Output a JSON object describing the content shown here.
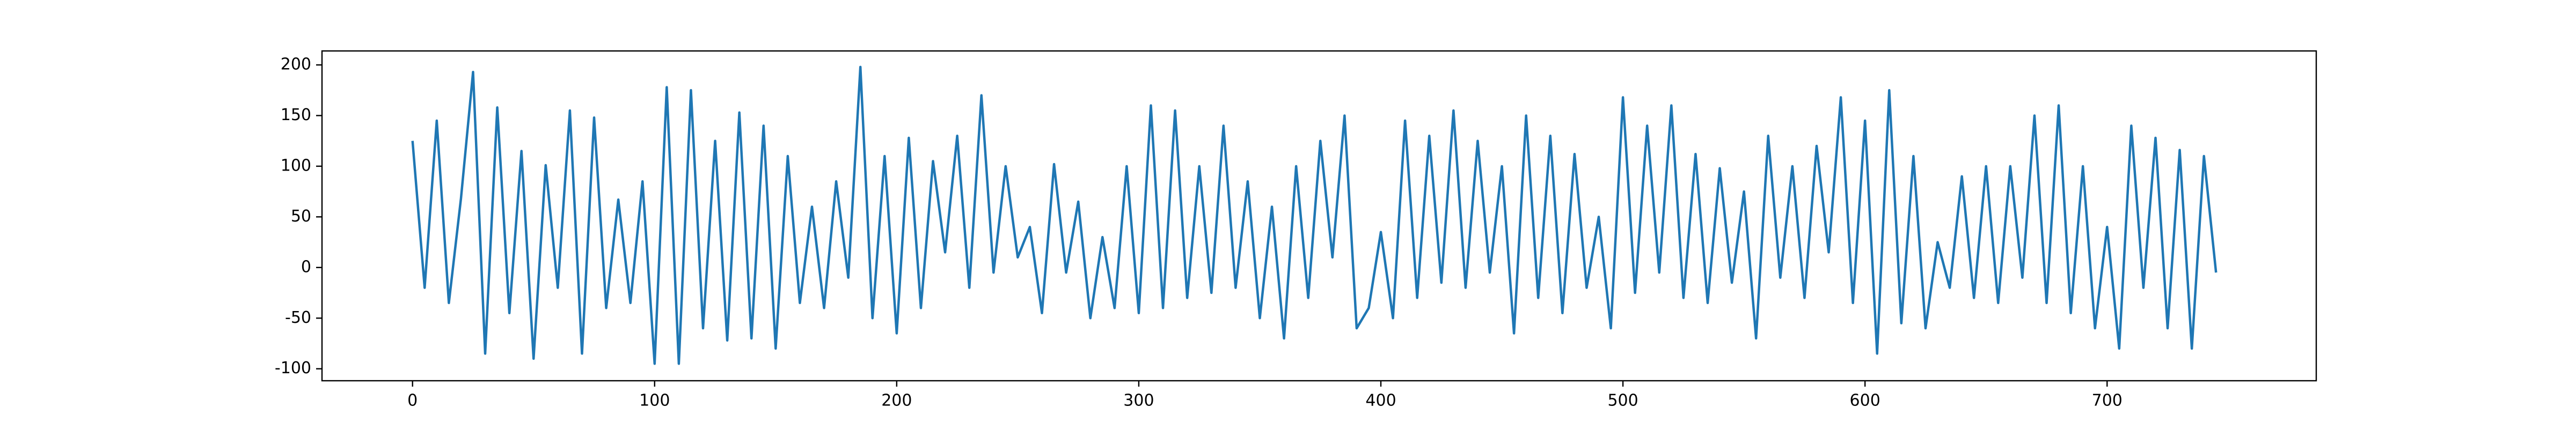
{
  "chart_data": {
    "type": "line",
    "color": "#1f77b4",
    "grid": false,
    "x": [
      0,
      5,
      10,
      15,
      20,
      25,
      30,
      35,
      40,
      45,
      50,
      55,
      60,
      65,
      70,
      75,
      80,
      85,
      90,
      95,
      100,
      105,
      110,
      115,
      120,
      125,
      130,
      135,
      140,
      145,
      150,
      155,
      160,
      165,
      170,
      175,
      180,
      185,
      190,
      195,
      200,
      205,
      210,
      215,
      220,
      225,
      230,
      235,
      240,
      245,
      250,
      255,
      260,
      265,
      270,
      275,
      280,
      285,
      290,
      295,
      300,
      305,
      310,
      315,
      320,
      325,
      330,
      335,
      340,
      345,
      350,
      355,
      360,
      365,
      370,
      375,
      380,
      385,
      390,
      395,
      400,
      405,
      410,
      415,
      420,
      425,
      430,
      435,
      440,
      445,
      450,
      455,
      460,
      465,
      470,
      475,
      480,
      485,
      490,
      495,
      500,
      505,
      510,
      515,
      520,
      525,
      530,
      535,
      540,
      545,
      550,
      555,
      560,
      565,
      570,
      575,
      580,
      585,
      590,
      595,
      600,
      605,
      610,
      615,
      620,
      625,
      630,
      635,
      640,
      645,
      650,
      655,
      660,
      665,
      670,
      675,
      680,
      685,
      690,
      695,
      700,
      705,
      710,
      715,
      720,
      725,
      730,
      735,
      740,
      745
    ],
    "values": [
      125,
      -20,
      145,
      -35,
      68,
      193,
      -85,
      158,
      -45,
      115,
      -90,
      101,
      -20,
      155,
      -85,
      148,
      -40,
      67,
      -35,
      85,
      -95,
      178,
      -95,
      175,
      -60,
      125,
      -72,
      153,
      -70,
      140,
      -80,
      110,
      -35,
      60,
      -40,
      85,
      -10,
      198,
      -50,
      110,
      -65,
      128,
      -40,
      105,
      15,
      130,
      -20,
      170,
      -5,
      100,
      10,
      40,
      -45,
      102,
      -5,
      65,
      -50,
      30,
      -40,
      100,
      -45,
      160,
      -40,
      155,
      -30,
      100,
      -25,
      140,
      -20,
      85,
      -50,
      60,
      -70,
      100,
      -30,
      125,
      10,
      150,
      -60,
      -40,
      35,
      -50,
      145,
      -30,
      130,
      -15,
      155,
      -20,
      125,
      -5,
      100,
      -65,
      150,
      -30,
      130,
      -45,
      112,
      -20,
      50,
      -60,
      168,
      -25,
      140,
      -5,
      160,
      -30,
      112,
      -35,
      98,
      -15,
      75,
      -70,
      130,
      -10,
      100,
      -30,
      120,
      15,
      168,
      -35,
      145,
      -85,
      175,
      -55,
      110,
      -60,
      25,
      -20,
      90,
      -30,
      100,
      -35,
      100,
      -10,
      150,
      -35,
      160,
      -45,
      100,
      -60,
      40,
      -80,
      140,
      -20,
      128,
      -60,
      116,
      -80,
      110,
      -5
    ],
    "xlim": [
      -37.4,
      786.4
    ],
    "ylim": [
      -111.8,
      213.8
    ],
    "xticks": [
      0,
      100,
      200,
      300,
      400,
      500,
      600,
      700
    ],
    "yticks": [
      -100,
      -50,
      0,
      50,
      100,
      150,
      200
    ]
  }
}
